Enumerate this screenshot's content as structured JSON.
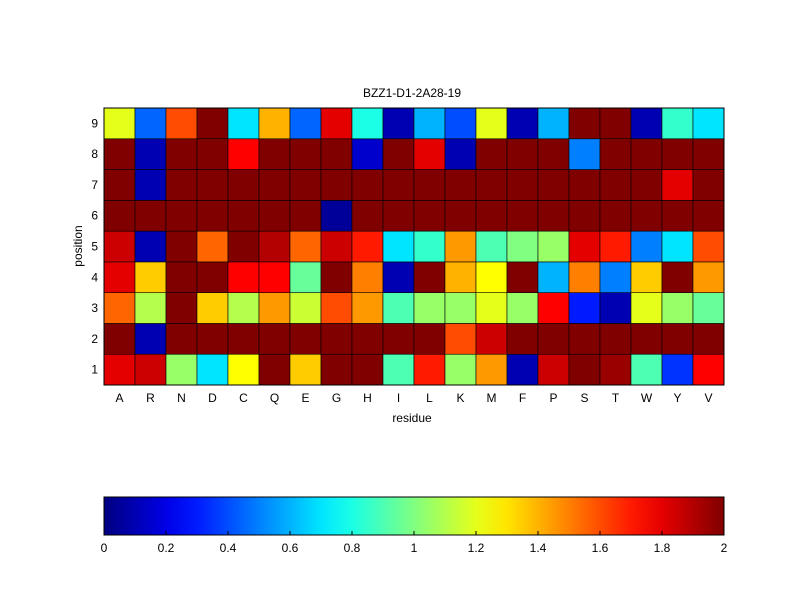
{
  "chart_data": {
    "type": "heatmap",
    "title": "BZZ1-D1-2A28-19",
    "xlabel": "residue",
    "ylabel": "position",
    "x_categories": [
      "A",
      "R",
      "N",
      "D",
      "C",
      "Q",
      "E",
      "G",
      "H",
      "I",
      "L",
      "K",
      "M",
      "F",
      "P",
      "S",
      "T",
      "W",
      "Y",
      "V"
    ],
    "y_categories": [
      "1",
      "2",
      "3",
      "4",
      "5",
      "6",
      "7",
      "8",
      "9"
    ],
    "values": [
      [
        1.8,
        1.85,
        1.05,
        0.7,
        1.25,
        2.0,
        1.35,
        2.0,
        2.0,
        0.9,
        1.7,
        1.05,
        1.45,
        0.1,
        1.85,
        2.0,
        1.95,
        0.9,
        0.35,
        1.75
      ],
      [
        2.0,
        0.1,
        2.0,
        2.0,
        2.0,
        2.0,
        2.0,
        2.0,
        2.0,
        2.0,
        2.0,
        1.6,
        1.85,
        2.0,
        2.0,
        2.0,
        2.0,
        2.0,
        2.0,
        2.0
      ],
      [
        1.55,
        1.1,
        2.0,
        1.35,
        1.1,
        1.45,
        1.15,
        1.6,
        1.45,
        0.9,
        1.05,
        1.05,
        1.2,
        1.05,
        1.75,
        0.3,
        0.1,
        1.2,
        1.05,
        0.95
      ],
      [
        1.8,
        1.35,
        2.0,
        2.0,
        1.75,
        1.75,
        0.95,
        2.0,
        1.5,
        0.1,
        2.0,
        1.4,
        1.25,
        2.0,
        0.6,
        1.5,
        0.5,
        1.35,
        2.0,
        1.45
      ],
      [
        1.85,
        0.1,
        2.0,
        1.55,
        2.0,
        1.9,
        1.55,
        1.85,
        1.7,
        0.7,
        0.85,
        1.45,
        0.9,
        1.0,
        1.05,
        1.8,
        1.7,
        0.5,
        0.7,
        1.6
      ],
      [
        2.0,
        2.0,
        2.0,
        2.0,
        2.0,
        2.0,
        2.0,
        0.05,
        2.0,
        2.0,
        2.0,
        2.0,
        2.0,
        2.0,
        2.0,
        2.0,
        2.0,
        2.0,
        2.0,
        2.0
      ],
      [
        2.0,
        0.1,
        2.0,
        2.0,
        2.0,
        2.0,
        2.0,
        2.0,
        2.0,
        2.0,
        2.0,
        2.0,
        2.0,
        2.0,
        2.0,
        2.0,
        2.0,
        2.0,
        1.8,
        2.0
      ],
      [
        2.0,
        0.1,
        2.0,
        2.0,
        1.75,
        2.0,
        2.0,
        2.0,
        0.15,
        2.0,
        1.8,
        0.1,
        2.0,
        2.0,
        2.0,
        0.5,
        2.0,
        2.0,
        2.0,
        2.0
      ],
      [
        1.2,
        0.45,
        1.6,
        2.0,
        0.7,
        1.4,
        0.45,
        1.8,
        0.8,
        0.1,
        0.6,
        0.4,
        1.2,
        0.1,
        0.6,
        2.0,
        2.0,
        0.1,
        0.85,
        0.7
      ]
    ],
    "colorbar": {
      "colormap": "jet",
      "range": [
        0,
        2
      ],
      "ticks": [
        "0",
        "0.2",
        "0.4",
        "0.6",
        "0.8",
        "1",
        "1.2",
        "1.4",
        "1.6",
        "1.8",
        "2"
      ]
    },
    "grid": true,
    "legend": "none"
  }
}
